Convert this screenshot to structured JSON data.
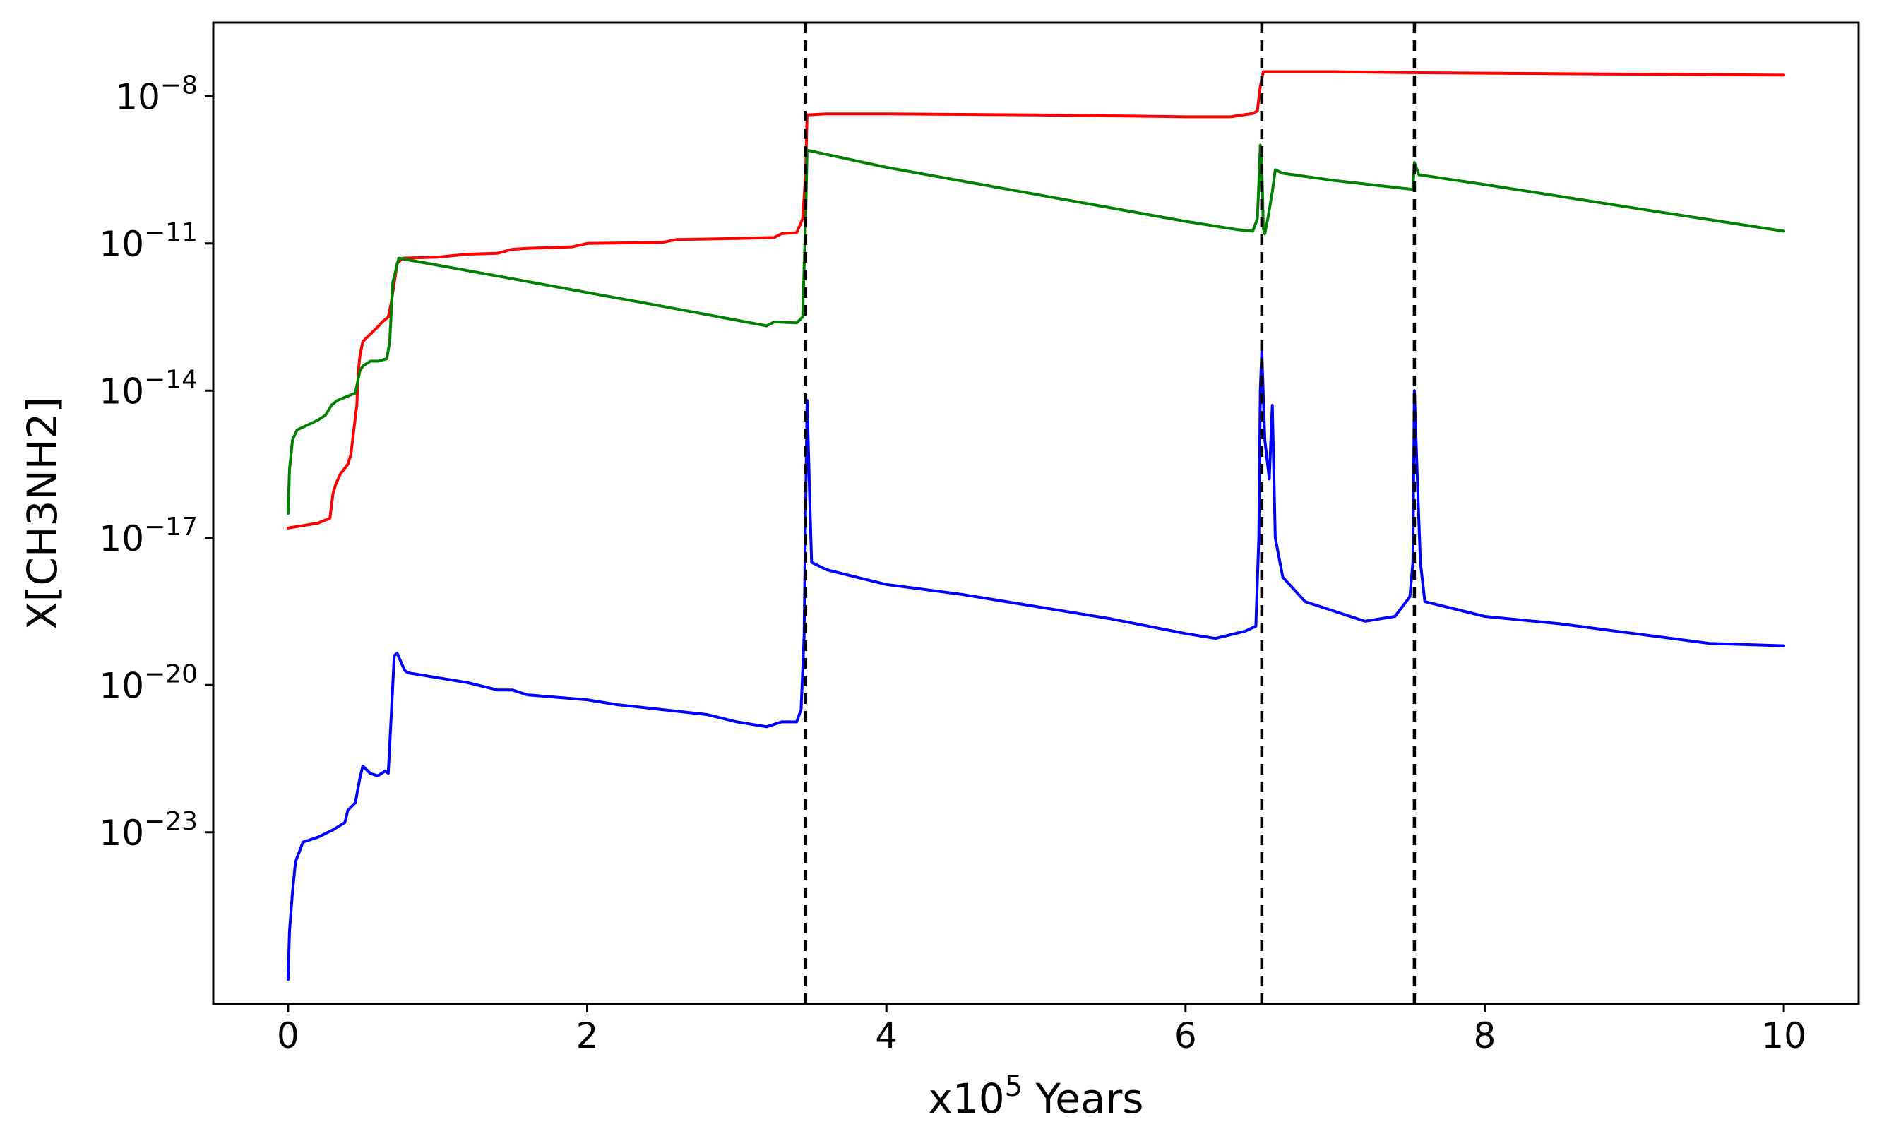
{
  "chart_data": {
    "type": "line",
    "title": "",
    "xlabel": "x10",
    "xlabel_superscript": "5",
    "xlabel_suffix": " Years",
    "ylabel": "X[CH3NH2]",
    "xlim": [
      -0.5,
      10.5
    ],
    "ylim_log10": [
      -26.5,
      -6.5
    ],
    "y_scale": "log",
    "grid": false,
    "x_ticks": [
      {
        "value": 0,
        "label": "0"
      },
      {
        "value": 2,
        "label": "2"
      },
      {
        "value": 4,
        "label": "4"
      },
      {
        "value": 6,
        "label": "6"
      },
      {
        "value": 8,
        "label": "8"
      },
      {
        "value": 10,
        "label": "10"
      }
    ],
    "y_ticks": [
      {
        "exp": -8,
        "base": "10",
        "sup": "−8"
      },
      {
        "exp": -11,
        "base": "10",
        "sup": "−11"
      },
      {
        "exp": -14,
        "base": "10",
        "sup": "−14"
      },
      {
        "exp": -17,
        "base": "10",
        "sup": "−17"
      },
      {
        "exp": -20,
        "base": "10",
        "sup": "−20"
      },
      {
        "exp": -23,
        "base": "10",
        "sup": "−23"
      }
    ],
    "vlines": [
      3.46,
      6.51,
      7.53
    ],
    "series": [
      {
        "color": "#ff0000",
        "points": [
          [
            0,
            -16.8
          ],
          [
            0.1,
            -16.75
          ],
          [
            0.2,
            -16.7
          ],
          [
            0.28,
            -16.6
          ],
          [
            0.3,
            -16.1
          ],
          [
            0.32,
            -15.9
          ],
          [
            0.35,
            -15.7
          ],
          [
            0.4,
            -15.5
          ],
          [
            0.42,
            -15.3
          ],
          [
            0.44,
            -14.8
          ],
          [
            0.46,
            -14.3
          ],
          [
            0.47,
            -13.6
          ],
          [
            0.48,
            -13.3
          ],
          [
            0.5,
            -13.0
          ],
          [
            0.55,
            -12.85
          ],
          [
            0.6,
            -12.7
          ],
          [
            0.63,
            -12.6
          ],
          [
            0.67,
            -12.5
          ],
          [
            0.69,
            -12.2
          ],
          [
            0.71,
            -11.8
          ],
          [
            0.73,
            -11.4
          ],
          [
            0.77,
            -11.3
          ],
          [
            1,
            -11.28
          ],
          [
            1.2,
            -11.22
          ],
          [
            1.4,
            -11.2
          ],
          [
            1.5,
            -11.12
          ],
          [
            1.6,
            -11.1
          ],
          [
            1.9,
            -11.07
          ],
          [
            2,
            -11.0
          ],
          [
            2.5,
            -10.98
          ],
          [
            2.6,
            -10.92
          ],
          [
            3,
            -10.9
          ],
          [
            3.25,
            -10.88
          ],
          [
            3.3,
            -10.8
          ],
          [
            3.4,
            -10.78
          ],
          [
            3.44,
            -10.5
          ],
          [
            3.46,
            -9.6
          ],
          [
            3.47,
            -8.38
          ],
          [
            3.6,
            -8.36
          ],
          [
            4,
            -8.36
          ],
          [
            5,
            -8.38
          ],
          [
            6,
            -8.42
          ],
          [
            6.3,
            -8.42
          ],
          [
            6.45,
            -8.35
          ],
          [
            6.48,
            -8.3
          ],
          [
            6.5,
            -7.8
          ],
          [
            6.52,
            -7.5
          ],
          [
            6.6,
            -7.5
          ],
          [
            7,
            -7.5
          ],
          [
            7.5,
            -7.52
          ],
          [
            8,
            -7.53
          ],
          [
            9,
            -7.55
          ],
          [
            10,
            -7.57
          ]
        ]
      },
      {
        "color": "#008000",
        "points": [
          [
            0,
            -16.5
          ],
          [
            0.01,
            -15.6
          ],
          [
            0.03,
            -15.0
          ],
          [
            0.06,
            -14.8
          ],
          [
            0.2,
            -14.6
          ],
          [
            0.25,
            -14.5
          ],
          [
            0.29,
            -14.3
          ],
          [
            0.33,
            -14.2
          ],
          [
            0.45,
            -14.05
          ],
          [
            0.48,
            -13.6
          ],
          [
            0.5,
            -13.5
          ],
          [
            0.55,
            -13.4
          ],
          [
            0.6,
            -13.4
          ],
          [
            0.66,
            -13.35
          ],
          [
            0.68,
            -13.0
          ],
          [
            0.7,
            -11.8
          ],
          [
            0.74,
            -11.3
          ],
          [
            1.5,
            -11.72
          ],
          [
            2,
            -12.0
          ],
          [
            2.5,
            -12.28
          ],
          [
            3.2,
            -12.68
          ],
          [
            3.25,
            -12.6
          ],
          [
            3.4,
            -12.62
          ],
          [
            3.44,
            -12.5
          ],
          [
            3.46,
            -10.5
          ],
          [
            3.47,
            -9.1
          ],
          [
            4,
            -9.45
          ],
          [
            5,
            -10.0
          ],
          [
            6,
            -10.55
          ],
          [
            6.35,
            -10.72
          ],
          [
            6.45,
            -10.75
          ],
          [
            6.48,
            -10.5
          ],
          [
            6.49,
            -9.8
          ],
          [
            6.5,
            -9.0
          ],
          [
            6.51,
            -9.4
          ],
          [
            6.52,
            -10.7
          ],
          [
            6.53,
            -10.8
          ],
          [
            6.55,
            -10.5
          ],
          [
            6.58,
            -9.95
          ],
          [
            6.6,
            -9.5
          ],
          [
            6.65,
            -9.57
          ],
          [
            7,
            -9.72
          ],
          [
            7.52,
            -9.9
          ],
          [
            7.53,
            -9.35
          ],
          [
            7.56,
            -9.6
          ],
          [
            8,
            -9.8
          ],
          [
            9,
            -10.28
          ],
          [
            10,
            -10.75
          ]
        ]
      },
      {
        "color": "#0000ff",
        "points": [
          [
            0,
            -26.0
          ],
          [
            0.01,
            -25.0
          ],
          [
            0.03,
            -24.2
          ],
          [
            0.05,
            -23.6
          ],
          [
            0.1,
            -23.2
          ],
          [
            0.2,
            -23.1
          ],
          [
            0.3,
            -22.95
          ],
          [
            0.38,
            -22.8
          ],
          [
            0.4,
            -22.55
          ],
          [
            0.45,
            -22.4
          ],
          [
            0.48,
            -21.9
          ],
          [
            0.5,
            -21.65
          ],
          [
            0.55,
            -21.8
          ],
          [
            0.6,
            -21.85
          ],
          [
            0.65,
            -21.75
          ],
          [
            0.67,
            -21.8
          ],
          [
            0.69,
            -20.6
          ],
          [
            0.71,
            -19.4
          ],
          [
            0.73,
            -19.35
          ],
          [
            0.75,
            -19.5
          ],
          [
            0.78,
            -19.7
          ],
          [
            0.8,
            -19.75
          ],
          [
            1,
            -19.85
          ],
          [
            1.2,
            -19.95
          ],
          [
            1.4,
            -20.1
          ],
          [
            1.5,
            -20.1
          ],
          [
            1.6,
            -20.2
          ],
          [
            1.8,
            -20.25
          ],
          [
            2,
            -20.3
          ],
          [
            2.2,
            -20.4
          ],
          [
            2.5,
            -20.5
          ],
          [
            2.8,
            -20.6
          ],
          [
            3,
            -20.75
          ],
          [
            3.2,
            -20.85
          ],
          [
            3.3,
            -20.75
          ],
          [
            3.4,
            -20.75
          ],
          [
            3.43,
            -20.5
          ],
          [
            3.45,
            -19.0
          ],
          [
            3.46,
            -16.5
          ],
          [
            3.47,
            -14.2
          ],
          [
            3.49,
            -16.5
          ],
          [
            3.5,
            -17.5
          ],
          [
            3.6,
            -17.65
          ],
          [
            3.8,
            -17.8
          ],
          [
            4,
            -17.95
          ],
          [
            4.5,
            -18.15
          ],
          [
            5,
            -18.4
          ],
          [
            5.5,
            -18.65
          ],
          [
            6,
            -18.95
          ],
          [
            6.2,
            -19.05
          ],
          [
            6.4,
            -18.9
          ],
          [
            6.47,
            -18.8
          ],
          [
            6.49,
            -17.0
          ],
          [
            6.5,
            -14.0
          ],
          [
            6.51,
            -13.2
          ],
          [
            6.53,
            -15.0
          ],
          [
            6.56,
            -15.8
          ],
          [
            6.58,
            -14.3
          ],
          [
            6.6,
            -17.0
          ],
          [
            6.65,
            -17.8
          ],
          [
            6.8,
            -18.3
          ],
          [
            7,
            -18.5
          ],
          [
            7.2,
            -18.7
          ],
          [
            7.4,
            -18.6
          ],
          [
            7.5,
            -18.2
          ],
          [
            7.52,
            -17.5
          ],
          [
            7.53,
            -14.0
          ],
          [
            7.55,
            -15.8
          ],
          [
            7.57,
            -17.5
          ],
          [
            7.6,
            -18.3
          ],
          [
            7.8,
            -18.45
          ],
          [
            8,
            -18.6
          ],
          [
            8.5,
            -18.75
          ],
          [
            9,
            -18.95
          ],
          [
            9.5,
            -19.15
          ],
          [
            10,
            -19.2
          ]
        ]
      }
    ]
  }
}
